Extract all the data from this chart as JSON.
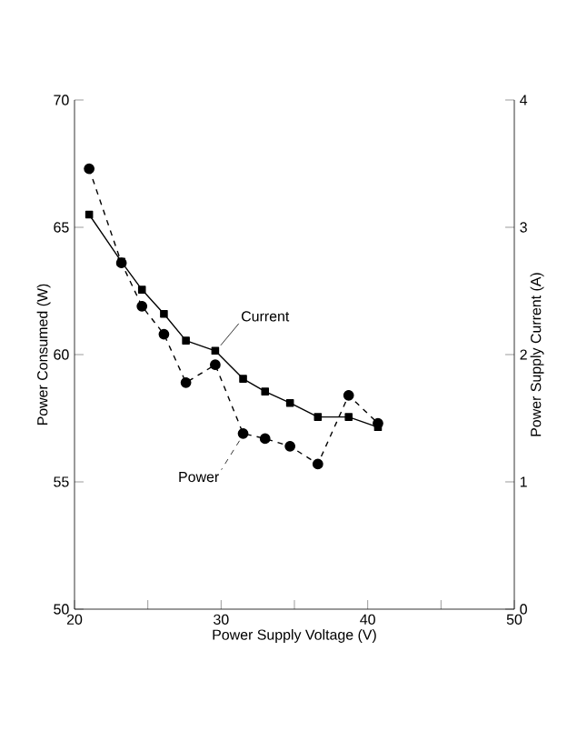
{
  "chart_data": {
    "type": "line",
    "xlabel": "Power Supply Voltage (V)",
    "ylabel": "Power Consumed (W)",
    "y2label": "Power Supply Current (A)",
    "x": [
      21.0,
      23.2,
      24.6,
      26.1,
      27.6,
      29.6,
      31.5,
      33.0,
      34.7,
      36.6,
      38.7,
      40.7
    ],
    "series": [
      {
        "name": "Power",
        "color": "#000000",
        "marker": "circle",
        "line_style": "dashed",
        "values": [
          67.3,
          63.6,
          61.9,
          60.8,
          58.9,
          59.6,
          56.9,
          56.7,
          56.4,
          55.7,
          58.4,
          57.3
        ]
      },
      {
        "name": "Current",
        "color": "#000000",
        "marker": "square",
        "line_style": "solid",
        "axis": "y2",
        "values": [
          3.1,
          2.73,
          2.51,
          2.32,
          2.11,
          2.03,
          1.81,
          1.71,
          1.62,
          1.51,
          1.51,
          1.43
        ]
      }
    ],
    "xlim": [
      20,
      50
    ],
    "xticks": [
      20,
      {
        "value": 25,
        "label": null
      },
      30,
      {
        "value": 35,
        "label": null
      },
      40,
      {
        "value": 45,
        "label": null
      },
      50
    ],
    "ylim": [
      50,
      70
    ],
    "yticks": [
      50,
      55,
      60,
      65,
      70
    ],
    "y2lim": [
      0,
      4
    ],
    "y2ticks": [
      0,
      1,
      2,
      3,
      4
    ]
  }
}
